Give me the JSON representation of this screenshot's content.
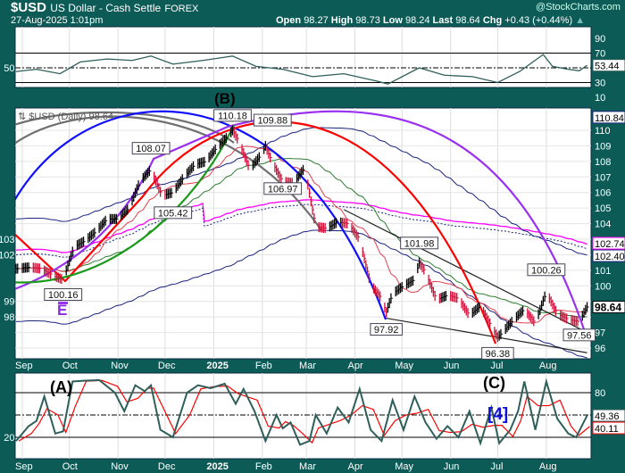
{
  "header": {
    "symbol": "$USD",
    "name": "US Dollar - Cash Settle",
    "exchange": "FOREX",
    "datetime": "27-Aug-2025 1:01pm",
    "watermark": "@StockCharts.com",
    "open_label": "Open",
    "open": "98.27",
    "high_label": "High",
    "high": "98.73",
    "low_label": "Low",
    "low": "98.24",
    "last_label": "Last",
    "last": "98.64",
    "chg_label": "Chg",
    "chg": "+0.43 (+0.44%)",
    "up_arrow_icon": "triangle-up-icon"
  },
  "chart_data": [
    {
      "type": "line",
      "panel": "rsi-top",
      "ylim": [
        0,
        100
      ],
      "yticks": [
        10,
        30,
        50,
        70,
        90
      ],
      "ref_lines": [
        70,
        50,
        30
      ],
      "last_label": "53.44",
      "color": "#2f5f5a",
      "points": [
        [
          "2024-08-28",
          45
        ],
        [
          "2024-09-10",
          48
        ],
        [
          "2024-09-25",
          42
        ],
        [
          "2024-10-08",
          58
        ],
        [
          "2024-10-25",
          62
        ],
        [
          "2024-11-10",
          60
        ],
        [
          "2024-11-22",
          66
        ],
        [
          "2024-12-06",
          55
        ],
        [
          "2024-12-25",
          60
        ],
        [
          "2025-01-13",
          66
        ],
        [
          "2025-01-28",
          52
        ],
        [
          "2025-02-14",
          48
        ],
        [
          "2025-03-05",
          38
        ],
        [
          "2025-03-25",
          42
        ],
        [
          "2025-04-15",
          32
        ],
        [
          "2025-04-22",
          28
        ],
        [
          "2025-05-12",
          50
        ],
        [
          "2025-05-28",
          40
        ],
        [
          "2025-06-15",
          38
        ],
        [
          "2025-07-01",
          30
        ],
        [
          "2025-07-15",
          45
        ],
        [
          "2025-07-30",
          68
        ],
        [
          "2025-08-05",
          52
        ],
        [
          "2025-08-15",
          48
        ],
        [
          "2025-08-22",
          46
        ],
        [
          "2025-08-27",
          53.44
        ]
      ]
    },
    {
      "type": "ohlc",
      "panel": "price",
      "title": "$USD (Daily) 98.64",
      "ylim": [
        95.5,
        111.5
      ],
      "yticks": [
        96,
        97,
        98,
        99,
        100,
        101,
        102,
        103,
        104,
        105,
        106,
        107,
        108,
        109,
        110
      ],
      "xticks": [
        "Sep",
        "Oct",
        "Nov",
        "Dec",
        "2025",
        "Feb",
        "Mar",
        "Apr",
        "May",
        "Jun",
        "Jul",
        "Aug"
      ],
      "xtick_dates": [
        "2024-09-01",
        "2024-10-01",
        "2024-11-01",
        "2024-12-01",
        "2025-01-01",
        "2025-02-01",
        "2025-03-01",
        "2025-04-01",
        "2025-05-01",
        "2025-06-01",
        "2025-07-01",
        "2025-08-01"
      ],
      "closes": [
        [
          "2024-08-28",
          101.1
        ],
        [
          "2024-09-06",
          101.2
        ],
        [
          "2024-09-13",
          101.1
        ],
        [
          "2024-09-20",
          100.7
        ],
        [
          "2024-09-27",
          100.4
        ],
        [
          "2024-10-04",
          102.5
        ],
        [
          "2024-10-11",
          102.9
        ],
        [
          "2024-10-18",
          103.5
        ],
        [
          "2024-10-25",
          104.3
        ],
        [
          "2024-11-01",
          104.3
        ],
        [
          "2024-11-08",
          105.0
        ],
        [
          "2024-11-15",
          106.7
        ],
        [
          "2024-11-22",
          107.5
        ],
        [
          "2024-11-29",
          105.8
        ],
        [
          "2024-12-06",
          106.0
        ],
        [
          "2024-12-13",
          107.0
        ],
        [
          "2024-12-20",
          107.8
        ],
        [
          "2024-12-27",
          108.0
        ],
        [
          "2025-01-03",
          108.9
        ],
        [
          "2025-01-10",
          109.6
        ],
        [
          "2025-01-13",
          110.0
        ],
        [
          "2025-01-17",
          109.3
        ],
        [
          "2025-01-24",
          107.5
        ],
        [
          "2025-01-31",
          108.4
        ],
        [
          "2025-02-03",
          109.0
        ],
        [
          "2025-02-07",
          108.0
        ],
        [
          "2025-02-14",
          106.7
        ],
        [
          "2025-02-21",
          106.6
        ],
        [
          "2025-02-28",
          107.6
        ],
        [
          "2025-03-07",
          103.8
        ],
        [
          "2025-03-14",
          103.7
        ],
        [
          "2025-03-21",
          104.1
        ],
        [
          "2025-03-28",
          104.0
        ],
        [
          "2025-04-04",
          103.0
        ],
        [
          "2025-04-11",
          100.1
        ],
        [
          "2025-04-18",
          99.2
        ],
        [
          "2025-04-21",
          98.3
        ],
        [
          "2025-04-25",
          99.5
        ],
        [
          "2025-05-02",
          100.0
        ],
        [
          "2025-05-09",
          100.4
        ],
        [
          "2025-05-12",
          101.5
        ],
        [
          "2025-05-16",
          100.9
        ],
        [
          "2025-05-23",
          99.1
        ],
        [
          "2025-05-30",
          99.4
        ],
        [
          "2025-06-06",
          99.2
        ],
        [
          "2025-06-13",
          98.1
        ],
        [
          "2025-06-20",
          98.7
        ],
        [
          "2025-06-27",
          97.4
        ],
        [
          "2025-07-01",
          96.7
        ],
        [
          "2025-07-04",
          97.0
        ],
        [
          "2025-07-11",
          97.8
        ],
        [
          "2025-07-18",
          98.5
        ],
        [
          "2025-07-25",
          97.6
        ],
        [
          "2025-08-01",
          99.6
        ],
        [
          "2025-08-08",
          98.2
        ],
        [
          "2025-08-15",
          97.85
        ],
        [
          "2025-08-22",
          97.7
        ],
        [
          "2025-08-27",
          98.64
        ]
      ],
      "price_labels": [
        [
          "2024-09-27",
          100.16,
          "100.16",
          "below"
        ],
        [
          "2024-11-22",
          108.07,
          "108.07",
          "above"
        ],
        [
          "2024-12-06",
          105.42,
          "105.42",
          "below"
        ],
        [
          "2025-01-13",
          110.18,
          "110.18",
          "above"
        ],
        [
          "2025-02-03",
          109.88,
          "109.88",
          "above"
        ],
        [
          "2025-02-14",
          106.97,
          "106.97",
          "below"
        ],
        [
          "2025-04-21",
          97.92,
          "97.92",
          "below"
        ],
        [
          "2025-05-12",
          101.98,
          "101.98",
          "above"
        ],
        [
          "2025-07-01",
          96.38,
          "96.38",
          "below"
        ],
        [
          "2025-08-01",
          100.26,
          "100.26",
          "above"
        ],
        [
          "2025-08-22",
          97.56,
          "97.56",
          "below"
        ]
      ],
      "axis_tags": [
        {
          "value": 110.84,
          "label": "110.84",
          "color": "#1a237e"
        },
        {
          "value": 102.74,
          "label": "102.74",
          "color": "#ff00ff"
        },
        {
          "value": 102.4,
          "label": "102.40",
          "color": "#1a237e"
        },
        {
          "value": 98.64,
          "label": "98.64",
          "color": "#000000"
        }
      ],
      "trendlines": [
        [
          [
            "2025-03-25",
            104.9
          ],
          [
            "2025-08-27",
            97.0
          ]
        ],
        [
          [
            "2025-04-21",
            97.92
          ],
          [
            "2025-08-27",
            95.7
          ]
        ]
      ],
      "wave_labels": [
        {
          "text": "(B)",
          "color": "#000000"
        },
        {
          "text": "E",
          "color": "#8a2be2"
        }
      ],
      "colors": {
        "up": "#000000",
        "down": "#d0103a",
        "sma20": "#e04050",
        "sma50": "#2e7d32",
        "sma200": "#ff00ff",
        "band": "#1a237e"
      }
    },
    {
      "type": "line",
      "panel": "stochastic",
      "ylim": [
        0,
        100
      ],
      "yticks": [
        20,
        80
      ],
      "ref_lines": [
        80,
        50,
        20
      ],
      "k_label": "49.36",
      "d_label": "40.11",
      "colors": {
        "k": "#2f5f5a",
        "d": "#ff0000"
      },
      "points": [
        [
          "2024-08-28",
          15
        ],
        [
          "2024-09-05",
          35
        ],
        [
          "2024-09-10",
          42
        ],
        [
          "2024-09-15",
          75
        ],
        [
          "2024-09-22",
          25
        ],
        [
          "2024-09-27",
          28
        ],
        [
          "2024-10-03",
          95
        ],
        [
          "2024-10-10",
          96
        ],
        [
          "2024-10-20",
          97
        ],
        [
          "2024-10-30",
          80
        ],
        [
          "2024-11-05",
          55
        ],
        [
          "2024-11-12",
          90
        ],
        [
          "2024-11-18",
          82
        ],
        [
          "2024-11-22",
          90
        ],
        [
          "2024-11-28",
          30
        ],
        [
          "2024-12-06",
          20
        ],
        [
          "2024-12-15",
          80
        ],
        [
          "2024-12-22",
          90
        ],
        [
          "2024-12-30",
          86
        ],
        [
          "2025-01-08",
          92
        ],
        [
          "2025-01-15",
          65
        ],
        [
          "2025-01-20",
          85
        ],
        [
          "2025-01-27",
          55
        ],
        [
          "2025-02-03",
          15
        ],
        [
          "2025-02-10",
          50
        ],
        [
          "2025-02-14",
          32
        ],
        [
          "2025-02-19",
          40
        ],
        [
          "2025-02-25",
          10
        ],
        [
          "2025-03-03",
          15
        ],
        [
          "2025-03-07",
          50
        ],
        [
          "2025-03-14",
          25
        ],
        [
          "2025-03-21",
          60
        ],
        [
          "2025-03-28",
          40
        ],
        [
          "2025-04-04",
          85
        ],
        [
          "2025-04-11",
          30
        ],
        [
          "2025-04-18",
          15
        ],
        [
          "2025-04-25",
          70
        ],
        [
          "2025-05-02",
          30
        ],
        [
          "2025-05-09",
          75
        ],
        [
          "2025-05-16",
          40
        ],
        [
          "2025-05-23",
          18
        ],
        [
          "2025-05-30",
          35
        ],
        [
          "2025-06-06",
          20
        ],
        [
          "2025-06-13",
          55
        ],
        [
          "2025-06-20",
          12
        ],
        [
          "2025-06-27",
          60
        ],
        [
          "2025-07-02",
          12
        ],
        [
          "2025-07-09",
          30
        ],
        [
          "2025-07-14",
          55
        ],
        [
          "2025-07-18",
          95
        ],
        [
          "2025-07-25",
          30
        ],
        [
          "2025-08-01",
          95
        ],
        [
          "2025-08-08",
          45
        ],
        [
          "2025-08-15",
          25
        ],
        [
          "2025-08-20",
          20
        ],
        [
          "2025-08-27",
          49.36
        ]
      ],
      "wave_labels": [
        {
          "text": "(A)",
          "color": "#000000"
        },
        {
          "text": "(C)",
          "color": "#000000"
        },
        {
          "text": "[4]",
          "color": "#1010e0"
        }
      ]
    }
  ]
}
